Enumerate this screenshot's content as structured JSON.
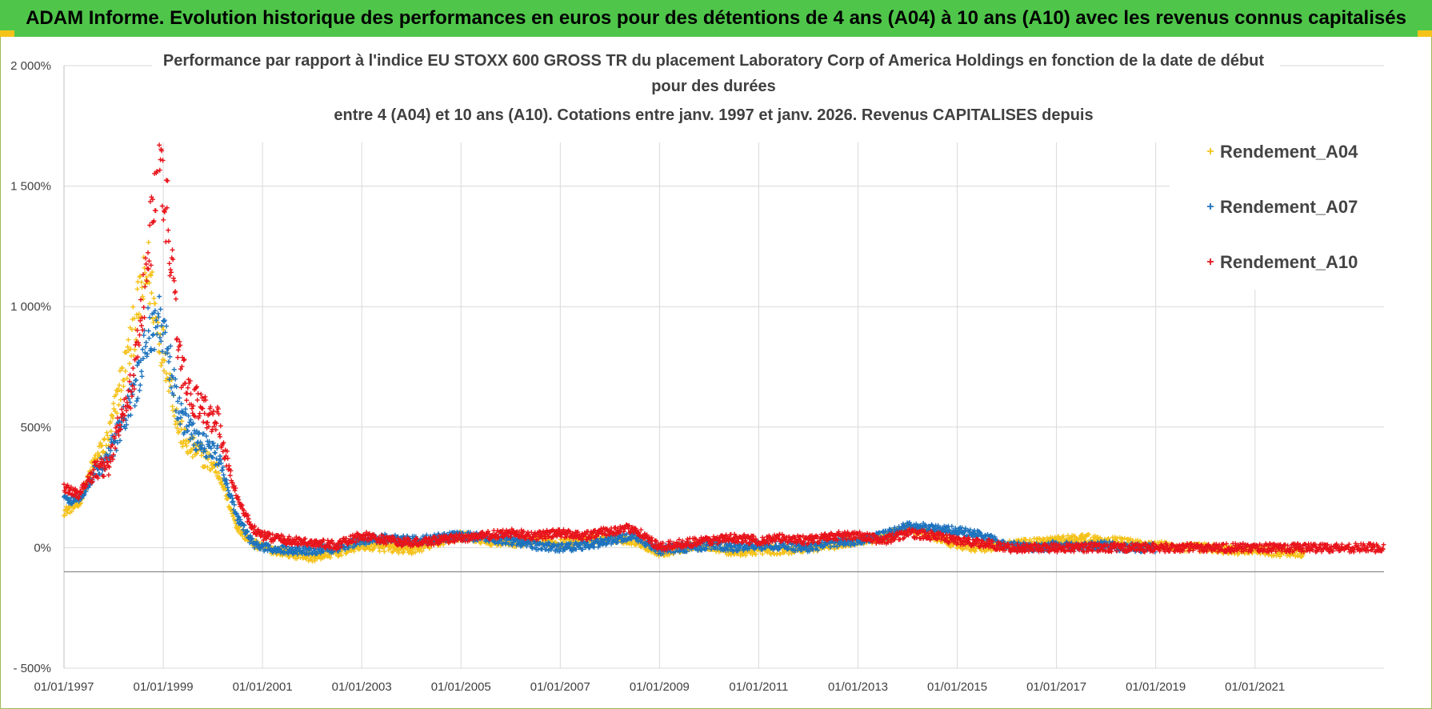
{
  "banner": {
    "title": "ADAM Informe. Evolution historique des performances en euros pour des détentions de 4 ans (A04) à 10 ans (A10) avec les revenus connus capitalisés"
  },
  "chart_data": {
    "type": "scatter",
    "title_lines": [
      "Performance par rapport à l'indice EU STOXX 600 GROSS TR  du placement Laboratory Corp of America Holdings en fonction de la date de début",
      "pour des durées",
      "entre 4 (A04) et 10 ans (A10).  Cotations entre janv. 1997 et janv. 2026. Revenus CAPITALISES depuis"
    ],
    "y_ticks": [
      "2 000%",
      "1 500%",
      "1 000%",
      "500%",
      "0%",
      "- 500%"
    ],
    "y_tick_values": [
      20,
      15,
      10,
      5,
      0,
      -5
    ],
    "ylim": [
      -5,
      20
    ],
    "x_ticks": [
      "01/01/1997",
      "01/01/1999",
      "01/01/2001",
      "01/01/2003",
      "01/01/2005",
      "01/01/2007",
      "01/01/2009",
      "01/01/2011",
      "01/01/2013",
      "01/01/2015",
      "01/01/2017",
      "01/01/2019",
      "01/01/2021"
    ],
    "x_tick_values": [
      1997,
      1999,
      2001,
      2003,
      2005,
      2007,
      2009,
      2011,
      2013,
      2015,
      2017,
      2019,
      2021
    ],
    "xlim": [
      1997,
      2023.6
    ],
    "legend_position": "top-right",
    "series": [
      {
        "name": "Rendement_A04",
        "color": "#f5c21a",
        "end": 2022.0,
        "points": [
          [
            1997.0,
            1.5
          ],
          [
            1997.3,
            1.8
          ],
          [
            1997.6,
            3.5
          ],
          [
            1997.9,
            4.5
          ],
          [
            1998.1,
            6.5
          ],
          [
            1998.3,
            8.0
          ],
          [
            1998.5,
            10.0
          ],
          [
            1998.7,
            11.5
          ],
          [
            1998.9,
            9.0
          ],
          [
            1999.1,
            7.5
          ],
          [
            1999.3,
            5.0
          ],
          [
            1999.5,
            4.2
          ],
          [
            1999.7,
            4.0
          ],
          [
            1999.9,
            3.6
          ],
          [
            2000.1,
            3.2
          ],
          [
            2000.3,
            2.0
          ],
          [
            2000.5,
            0.8
          ],
          [
            2000.8,
            0.2
          ],
          [
            2001.0,
            0.0
          ],
          [
            2001.5,
            -0.2
          ],
          [
            2002.0,
            -0.4
          ],
          [
            2002.5,
            -0.2
          ],
          [
            2003.0,
            0.1
          ],
          [
            2003.5,
            0.0
          ],
          [
            2004.0,
            -0.1
          ],
          [
            2004.5,
            0.2
          ],
          [
            2005.0,
            0.5
          ],
          [
            2005.5,
            0.3
          ],
          [
            2006.0,
            0.2
          ],
          [
            2006.5,
            0.3
          ],
          [
            2007.0,
            0.2
          ],
          [
            2007.5,
            0.3
          ],
          [
            2008.0,
            0.4
          ],
          [
            2008.5,
            0.3
          ],
          [
            2009.0,
            -0.2
          ],
          [
            2009.5,
            0.0
          ],
          [
            2010.0,
            0.1
          ],
          [
            2010.5,
            -0.2
          ],
          [
            2011.0,
            -0.1
          ],
          [
            2011.5,
            -0.1
          ],
          [
            2012.0,
            0.0
          ],
          [
            2012.5,
            0.1
          ],
          [
            2013.0,
            0.3
          ],
          [
            2013.5,
            0.4
          ],
          [
            2014.0,
            0.8
          ],
          [
            2014.5,
            0.5
          ],
          [
            2015.0,
            0.1
          ],
          [
            2015.5,
            0.0
          ],
          [
            2016.0,
            0.1
          ],
          [
            2016.5,
            0.2
          ],
          [
            2017.0,
            0.3
          ],
          [
            2017.5,
            0.4
          ],
          [
            2018.0,
            0.3
          ],
          [
            2018.5,
            0.2
          ],
          [
            2019.0,
            0.1
          ],
          [
            2019.5,
            0.0
          ],
          [
            2020.0,
            0.0
          ],
          [
            2020.5,
            -0.1
          ],
          [
            2021.0,
            -0.1
          ],
          [
            2021.5,
            -0.2
          ],
          [
            2022.0,
            -0.2
          ]
        ]
      },
      {
        "name": "Rendement_A07",
        "color": "#1e73be",
        "end": 2019.0,
        "points": [
          [
            1997.0,
            2.0
          ],
          [
            1997.3,
            2.0
          ],
          [
            1997.6,
            3.0
          ],
          [
            1997.9,
            3.8
          ],
          [
            1998.1,
            4.8
          ],
          [
            1998.3,
            5.8
          ],
          [
            1998.5,
            7.0
          ],
          [
            1998.7,
            9.0
          ],
          [
            1998.9,
            9.5
          ],
          [
            1999.1,
            8.0
          ],
          [
            1999.3,
            5.8
          ],
          [
            1999.5,
            5.0
          ],
          [
            1999.7,
            4.5
          ],
          [
            1999.9,
            4.2
          ],
          [
            2000.1,
            3.8
          ],
          [
            2000.3,
            2.5
          ],
          [
            2000.5,
            1.2
          ],
          [
            2000.8,
            0.2
          ],
          [
            2001.0,
            0.0
          ],
          [
            2001.5,
            -0.1
          ],
          [
            2002.0,
            -0.1
          ],
          [
            2002.5,
            0.0
          ],
          [
            2003.0,
            0.3
          ],
          [
            2003.5,
            0.4
          ],
          [
            2004.0,
            0.3
          ],
          [
            2004.5,
            0.4
          ],
          [
            2005.0,
            0.5
          ],
          [
            2005.5,
            0.4
          ],
          [
            2006.0,
            0.3
          ],
          [
            2006.5,
            0.1
          ],
          [
            2007.0,
            0.0
          ],
          [
            2007.5,
            0.1
          ],
          [
            2008.0,
            0.3
          ],
          [
            2008.5,
            0.5
          ],
          [
            2009.0,
            -0.1
          ],
          [
            2009.5,
            0.0
          ],
          [
            2010.0,
            0.1
          ],
          [
            2010.5,
            0.0
          ],
          [
            2011.0,
            0.1
          ],
          [
            2011.5,
            0.1
          ],
          [
            2012.0,
            0.0
          ],
          [
            2012.5,
            0.2
          ],
          [
            2013.0,
            0.3
          ],
          [
            2013.5,
            0.5
          ],
          [
            2014.0,
            0.9
          ],
          [
            2014.5,
            0.8
          ],
          [
            2015.0,
            0.7
          ],
          [
            2015.5,
            0.5
          ],
          [
            2016.0,
            0.1
          ],
          [
            2016.5,
            0.0
          ],
          [
            2017.0,
            0.1
          ],
          [
            2017.5,
            0.0
          ],
          [
            2018.0,
            0.1
          ],
          [
            2018.5,
            0.0
          ],
          [
            2019.0,
            0.0
          ]
        ]
      },
      {
        "name": "Rendement_A10",
        "color": "#e8141b",
        "end": 2023.6,
        "points": [
          [
            1997.0,
            2.5
          ],
          [
            1997.3,
            2.2
          ],
          [
            1997.6,
            3.2
          ],
          [
            1997.9,
            3.4
          ],
          [
            1998.1,
            5.0
          ],
          [
            1998.3,
            6.0
          ],
          [
            1998.5,
            8.5
          ],
          [
            1998.7,
            12.0
          ],
          [
            1998.9,
            16.5
          ],
          [
            1999.1,
            13.5
          ],
          [
            1999.3,
            8.0
          ],
          [
            1999.5,
            6.5
          ],
          [
            1999.7,
            6.0
          ],
          [
            1999.9,
            5.5
          ],
          [
            2000.1,
            5.3
          ],
          [
            2000.3,
            3.5
          ],
          [
            2000.5,
            2.0
          ],
          [
            2000.8,
            0.8
          ],
          [
            2001.0,
            0.5
          ],
          [
            2001.5,
            0.3
          ],
          [
            2002.0,
            0.2
          ],
          [
            2002.5,
            0.1
          ],
          [
            2003.0,
            0.5
          ],
          [
            2003.5,
            0.3
          ],
          [
            2004.0,
            0.2
          ],
          [
            2004.5,
            0.3
          ],
          [
            2005.0,
            0.4
          ],
          [
            2005.5,
            0.5
          ],
          [
            2006.0,
            0.6
          ],
          [
            2006.5,
            0.5
          ],
          [
            2007.0,
            0.6
          ],
          [
            2007.5,
            0.5
          ],
          [
            2008.0,
            0.7
          ],
          [
            2008.5,
            0.8
          ],
          [
            2009.0,
            0.0
          ],
          [
            2009.5,
            0.2
          ],
          [
            2010.0,
            0.3
          ],
          [
            2010.5,
            0.4
          ],
          [
            2011.0,
            0.3
          ],
          [
            2011.5,
            0.4
          ],
          [
            2012.0,
            0.3
          ],
          [
            2012.5,
            0.5
          ],
          [
            2013.0,
            0.5
          ],
          [
            2013.5,
            0.3
          ],
          [
            2014.0,
            0.6
          ],
          [
            2014.5,
            0.5
          ],
          [
            2015.0,
            0.3
          ],
          [
            2015.5,
            0.2
          ],
          [
            2016.0,
            0.0
          ],
          [
            2017.0,
            0.0
          ],
          [
            2018.0,
            0.0
          ],
          [
            2019.0,
            0.0
          ],
          [
            2020.0,
            0.0
          ],
          [
            2021.0,
            0.0
          ],
          [
            2022.0,
            0.0
          ],
          [
            2023.0,
            0.0
          ],
          [
            2023.6,
            0.0
          ]
        ]
      }
    ]
  }
}
